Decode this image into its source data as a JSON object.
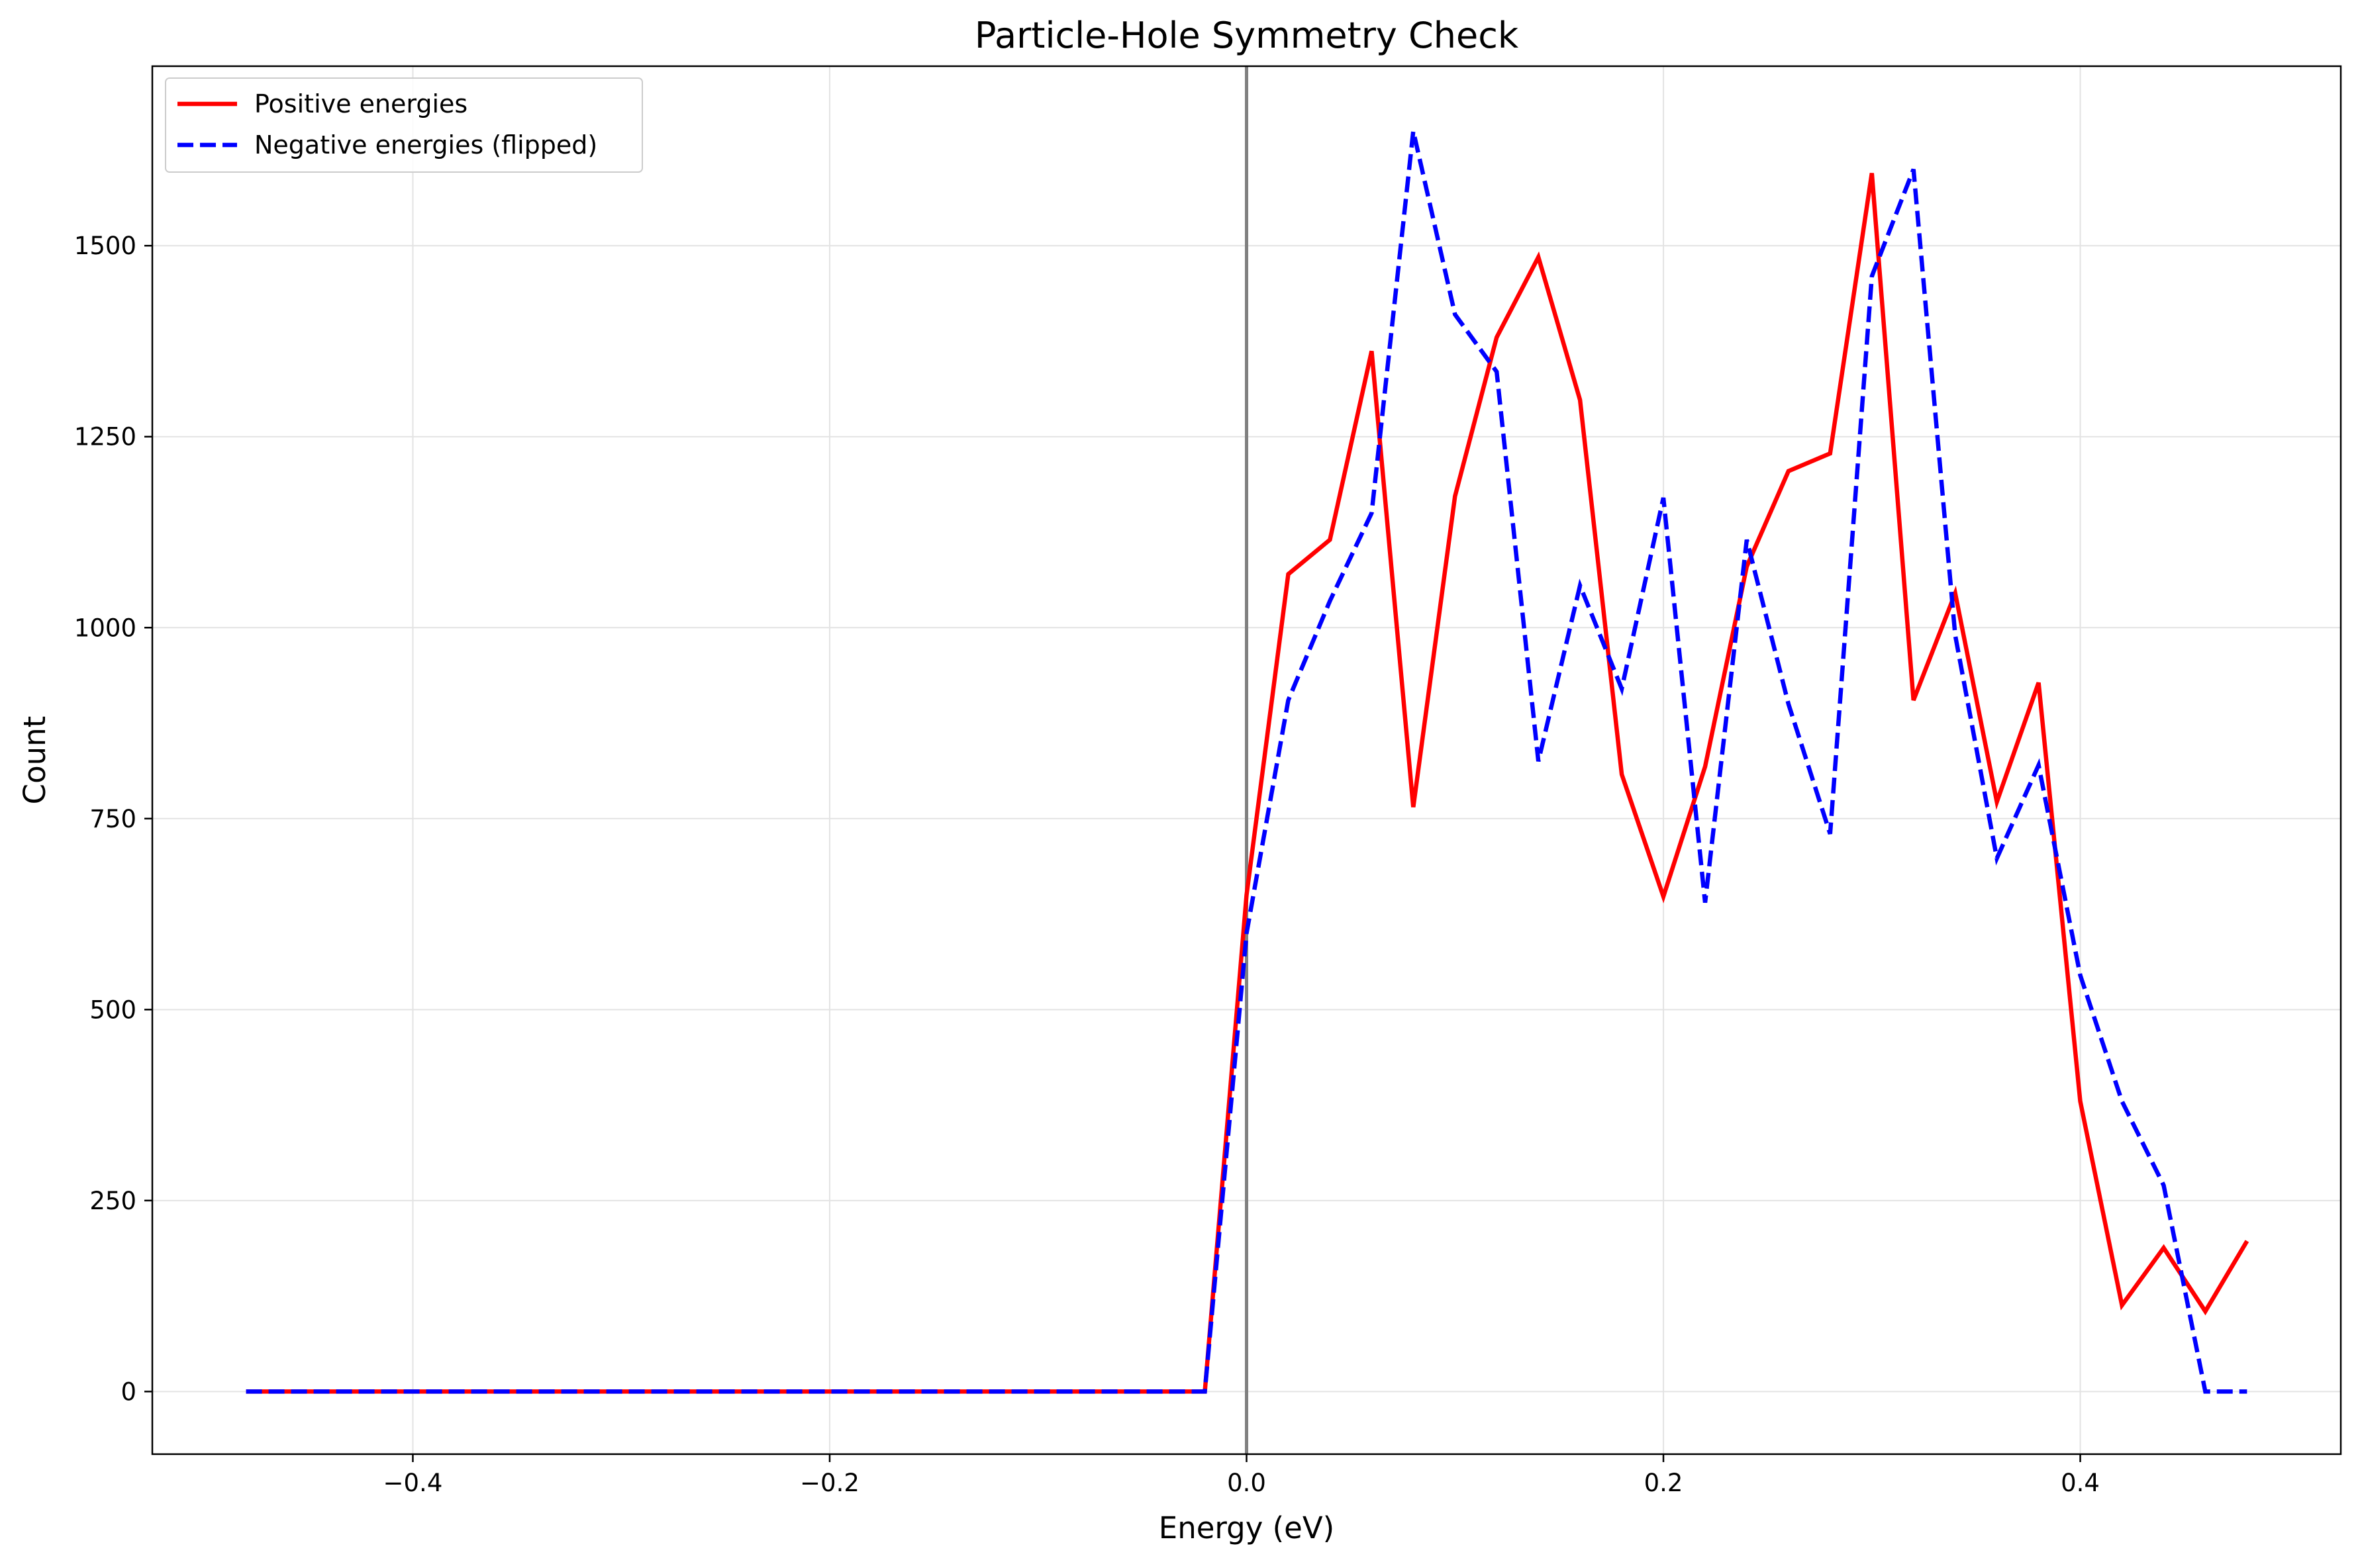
{
  "chart_data": {
    "type": "line",
    "title": "Particle-Hole Symmetry Check",
    "xlabel": "Energy (eV)",
    "ylabel": "Count",
    "xlim": [
      -0.525,
      0.525
    ],
    "ylim": [
      -82,
      1735
    ],
    "xticks": [
      -0.4,
      -0.2,
      0.0,
      0.2,
      0.4
    ],
    "xtick_labels": [
      "−0.4",
      "−0.2",
      "0.0",
      "0.2",
      "0.4"
    ],
    "yticks": [
      0,
      250,
      500,
      750,
      1000,
      1250,
      1500
    ],
    "ytick_labels": [
      "0",
      "250",
      "500",
      "750",
      "1000",
      "1250",
      "1500"
    ],
    "grid": true,
    "legend_position": "top-left",
    "zero_line": {
      "x": 0.0,
      "color": "#808080"
    },
    "x": [
      -0.48,
      -0.46,
      -0.44,
      -0.42,
      -0.4,
      -0.38,
      -0.36,
      -0.34,
      -0.32,
      -0.3,
      -0.28,
      -0.26,
      -0.24,
      -0.22,
      -0.2,
      -0.18,
      -0.16,
      -0.14,
      -0.12,
      -0.1,
      -0.08,
      -0.06,
      -0.04,
      -0.02,
      0.0,
      0.02,
      0.04,
      0.06,
      0.08,
      0.1,
      0.12,
      0.14,
      0.16,
      0.18,
      0.2,
      0.22,
      0.24,
      0.26,
      0.28,
      0.3,
      0.32,
      0.34,
      0.36,
      0.38,
      0.4,
      0.42,
      0.44,
      0.46,
      0.48
    ],
    "series": [
      {
        "name": "Positive energies",
        "color": "#ff0000",
        "style": "solid",
        "values": [
          0,
          0,
          0,
          0,
          0,
          0,
          0,
          0,
          0,
          0,
          0,
          0,
          0,
          0,
          0,
          0,
          0,
          0,
          0,
          0,
          0,
          0,
          0,
          0,
          650,
          1070,
          1115,
          1362,
          765,
          1172,
          1380,
          1485,
          1298,
          808,
          648,
          818,
          1080,
          1205,
          1228,
          1595,
          905,
          1045,
          772,
          928,
          380,
          113,
          188,
          105,
          197
        ]
      },
      {
        "name": "Negative energies (flipped)",
        "color": "#0000ff",
        "style": "dashed",
        "values": [
          0,
          0,
          0,
          0,
          0,
          0,
          0,
          0,
          0,
          0,
          0,
          0,
          0,
          0,
          0,
          0,
          0,
          0,
          0,
          0,
          0,
          0,
          0,
          0,
          600,
          905,
          1035,
          1150,
          1650,
          1410,
          1335,
          825,
          1055,
          920,
          1170,
          640,
          1115,
          900,
          730,
          1460,
          1600,
          990,
          698,
          820,
          545,
          380,
          270,
          0,
          0
        ]
      }
    ]
  }
}
